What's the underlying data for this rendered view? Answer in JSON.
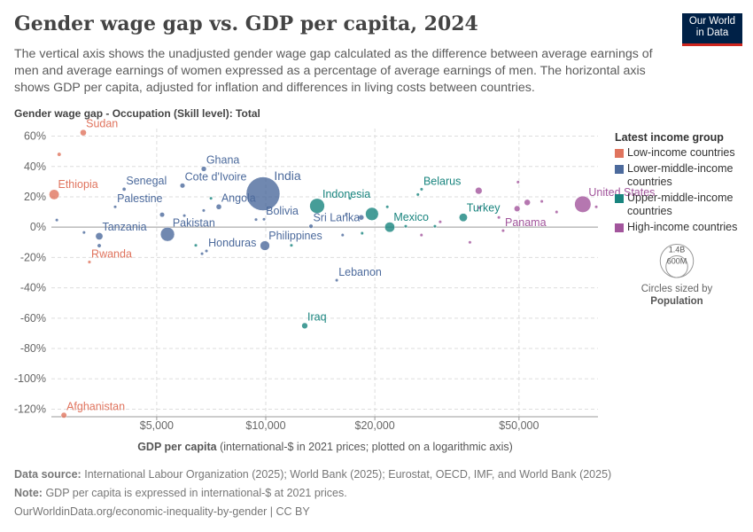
{
  "chart_data": {
    "type": "scatter",
    "title": "Gender wage gap vs. GDP per capita, 2024",
    "subtitle": "The vertical axis shows the unadjusted gender wage gap calculated as the difference between average earnings of men and average earnings of women expressed as a percentage of average earnings of men. The horizontal axis shows GDP per capita, adjusted for inflation and differences in living costs between countries.",
    "ylabel": "Gender wage gap - Occupation (Skill level): Total",
    "xlabel": "GDP per capita",
    "xlabel_note": "(international-$ in 2021 prices; plotted on a logarithmic axis)",
    "log_x": true,
    "grid": true,
    "xlim": [
      2560,
      82600
    ],
    "ylim": [
      -125,
      65
    ],
    "xticks": [
      {
        "value": 5000,
        "label": "$5,000"
      },
      {
        "value": 10000,
        "label": "$10,000"
      },
      {
        "value": 20000,
        "label": "$20,000"
      },
      {
        "value": 50000,
        "label": "$50,000"
      }
    ],
    "yticks": [
      {
        "value": 60,
        "label": "60%"
      },
      {
        "value": 40,
        "label": "40%"
      },
      {
        "value": 20,
        "label": "20%"
      },
      {
        "value": 0,
        "label": "0%"
      },
      {
        "value": -20,
        "label": "-20%"
      },
      {
        "value": -40,
        "label": "-40%"
      },
      {
        "value": -60,
        "label": "-60%"
      },
      {
        "value": -80,
        "label": "-80%"
      },
      {
        "value": -100,
        "label": "-100%"
      },
      {
        "value": -120,
        "label": "-120%"
      }
    ],
    "legend_title": "Latest income group",
    "legend": "right",
    "series": [
      {
        "name": "Low-income countries",
        "color": "#e0745e",
        "x": [
          3135,
          2772,
          2605,
          3260,
          2690
        ],
        "values": [
          62.3,
          -124,
          21.5,
          -23,
          48
        ],
        "sizes": [
          50000000,
          42000000,
          129000000,
          14000000,
          20000000
        ],
        "labels": [
          "Sudan",
          "Afghanistan",
          "Ethiopia",
          "Rwanda",
          null
        ]
      },
      {
        "name": "Lower-middle-income countries",
        "color": "#4c6a9c",
        "x": [
          3470,
          4065,
          3840,
          6745,
          5890,
          5355,
          7420,
          9830,
          9890,
          9945,
          6860,
          13330,
          15700,
          2650,
          3150,
          3470,
          5175,
          5960,
          6740,
          6670,
          9400,
          16700,
          18350,
          16300
        ],
        "values": [
          -6,
          25,
          13.4,
          38.4,
          27.4,
          -4.7,
          13.4,
          22,
          5.2,
          -12.2,
          -15.7,
          0.6,
          -35,
          4.7,
          -3.5,
          -12.2,
          8.2,
          7.6,
          11,
          -17.5,
          5,
          8.7,
          6.4,
          -5.2
        ],
        "sizes": [
          68000000,
          18000000,
          5000000,
          34000000,
          31000000,
          251000000,
          37000000,
          1441000000,
          12000000,
          116000000,
          10000000,
          22000000,
          5000000,
          8000000,
          6000000,
          20000000,
          30000000,
          12000000,
          9000000,
          6000000,
          11000000,
          10000000,
          35000000,
          7000000
        ],
        "labels": [
          "Tanzania",
          "Senegal",
          "Palestine",
          "Ghana",
          "Cote d'Ivoire",
          "Pakistan",
          "Angola",
          "India",
          "Bolivia",
          "Philippines",
          "Honduras",
          "Sri Lanka",
          "Lebanon",
          null,
          null,
          null,
          null,
          null,
          null,
          null,
          null,
          null,
          null,
          null
        ]
      },
      {
        "name": "Upper-middle-income countries",
        "color": "#18847e",
        "x": [
          13860,
          12810,
          21990,
          26920,
          35090,
          6410,
          7060,
          11770,
          17070,
          18450,
          19640,
          21650,
          24340,
          29300,
          26300
        ],
        "values": [
          14,
          -65,
          0,
          25,
          6.4,
          -12,
          19,
          -12,
          19,
          -4,
          8.7,
          13.4,
          0.6,
          0.6,
          21.5
        ],
        "sizes": [
          281000000,
          46000000,
          130000000,
          9000000,
          87000000,
          6000000,
          7000000,
          4000000,
          3000000,
          10000000,
          216000000,
          6000000,
          5000000,
          12000000,
          4000000
        ],
        "labels": [
          "Indonesia",
          "Iraq",
          "Mexico",
          "Belarus",
          "Turkey",
          null,
          null,
          null,
          null,
          null,
          null,
          null,
          null,
          null,
          null
        ]
      },
      {
        "name": "High-income countries",
        "color": "#a2559c",
        "x": [
          75000,
          45200,
          26900,
          30300,
          38900,
          38700,
          49700,
          49400,
          52700,
          57800,
          44000,
          36600,
          63500,
          81700
        ],
        "values": [
          15.1,
          -2.3,
          -5.2,
          3.5,
          12.8,
          24,
          29.7,
          12.2,
          16.3,
          17,
          6.4,
          -10,
          10,
          13.4
        ],
        "sizes": [
          340000000,
          4500000,
          3000000,
          6000000,
          8000000,
          60000000,
          5000000,
          45000000,
          48000000,
          9000000,
          10000000,
          2000000,
          5000000,
          9000000
        ],
        "labels": [
          "United States",
          "Panama",
          null,
          null,
          null,
          null,
          null,
          null,
          null,
          null,
          null,
          null,
          null,
          null
        ]
      }
    ],
    "size_legend": {
      "title": "Circles sized by",
      "variable": "Population",
      "values": [
        {
          "value": 1400000000,
          "label": "1.4B"
        },
        {
          "value": 600000000,
          "label": "600M"
        }
      ]
    },
    "logo": [
      "Our World",
      "in Data"
    ]
  },
  "footer": {
    "source_label": "Data source:",
    "source": "International Labour Organization (2025); World Bank (2025); Eurostat, OECD, IMF, and World Bank (2025)",
    "note_label": "Note:",
    "note": "GDP per capita is expressed in international-$ at 2021 prices.",
    "url": "OurWorldinData.org/economic-inequality-by-gender | CC BY"
  }
}
